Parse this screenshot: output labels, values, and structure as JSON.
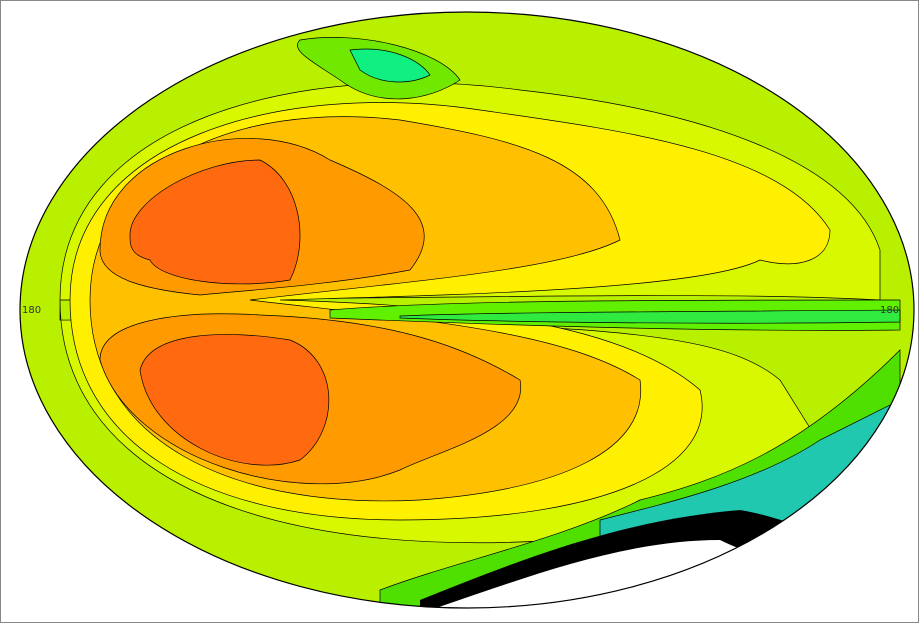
{
  "map": {
    "meridian_labels": [
      "180",
      "180"
    ]
  }
}
